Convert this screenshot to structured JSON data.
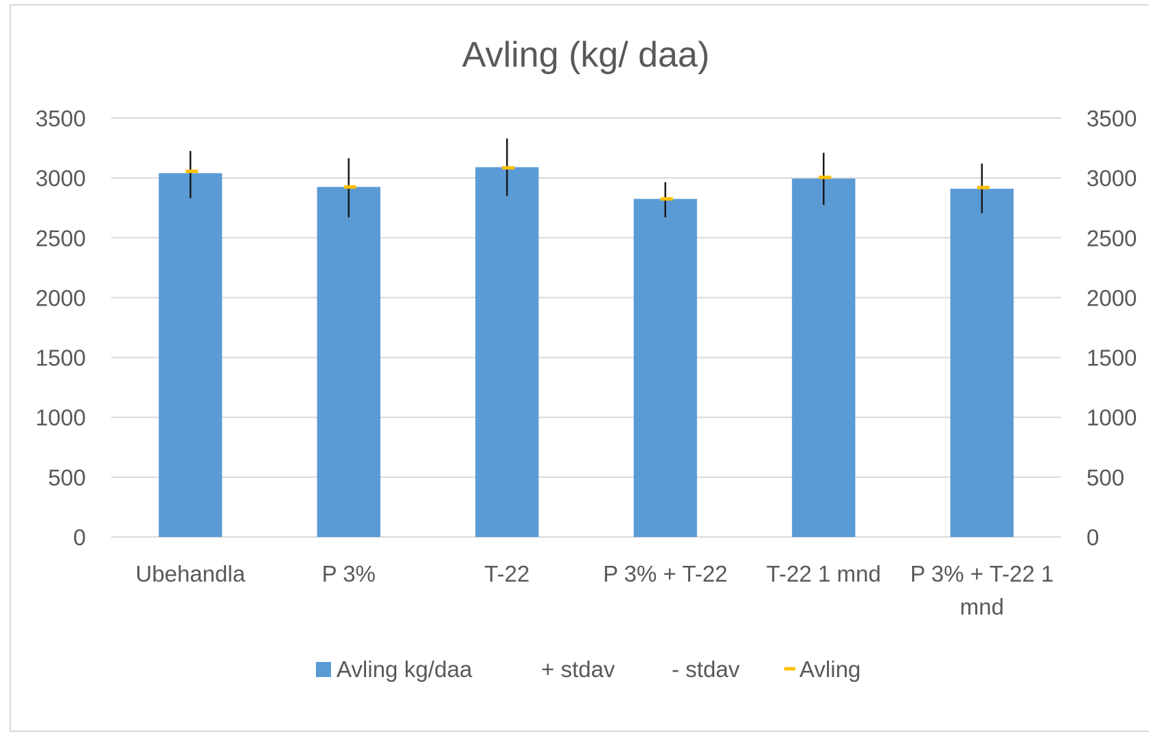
{
  "chart_data": {
    "type": "bar",
    "title": "Avling (kg/ daa)",
    "categories": [
      [
        "Ubehandla"
      ],
      [
        "P 3%"
      ],
      [
        "T-22"
      ],
      [
        "P 3% + T-22"
      ],
      [
        "T-22 1 mnd"
      ],
      [
        "P 3% + T-22 1",
        "mnd"
      ]
    ],
    "series": [
      {
        "name": "Avling kg/daa",
        "values": [
          3040,
          2925,
          3090,
          2825,
          2995,
          2910
        ],
        "color": "#5b9bd5"
      }
    ],
    "error_bars": {
      "plus_name": "+ stdav",
      "minus_name": "- stdav",
      "upper": [
        3225,
        3165,
        3330,
        2965,
        3210,
        3120
      ],
      "lower": [
        2830,
        2670,
        2850,
        2670,
        2775,
        2705
      ]
    },
    "marker_series": {
      "name": "Avling",
      "values": [
        3055,
        2925,
        3085,
        2825,
        3005,
        2920
      ],
      "color": "#ffc000"
    },
    "ylim": [
      0,
      3500
    ],
    "yticks": [
      0,
      500,
      1000,
      1500,
      2000,
      2500,
      3000,
      3500
    ],
    "secondary_yticks": [
      0,
      500,
      1000,
      1500,
      2000,
      2500,
      3000,
      3500
    ],
    "grid": true,
    "legend_position": "bottom"
  }
}
